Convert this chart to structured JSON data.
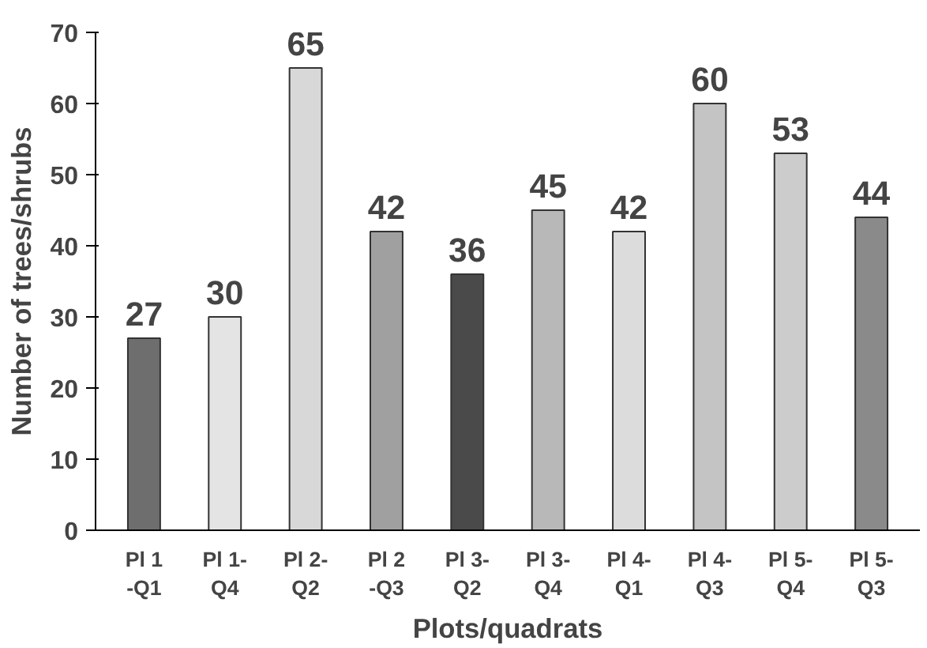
{
  "chart_data": {
    "type": "bar",
    "xlabel": "Plots/quadrats",
    "ylabel": "Number of trees/shrubs",
    "categories": [
      "Pl 1\n-Q1",
      "Pl 1-\nQ4",
      "Pl 2-\nQ2",
      "Pl 2\n-Q3",
      "Pl 3-\nQ2",
      "Pl 3-\nQ4",
      "Pl 4-\nQ1",
      "Pl 4-\nQ3",
      "Pl 5-\nQ4",
      "Pl 5-\nQ3"
    ],
    "values": [
      27,
      30,
      65,
      42,
      36,
      45,
      42,
      60,
      53,
      44
    ],
    "colors": [
      "#6e6e6e",
      "#e4e4e4",
      "#d8d8d8",
      "#a0a0a0",
      "#4a4a4a",
      "#b8b8b8",
      "#dcdcdc",
      "#c4c4c4",
      "#cccccc",
      "#8a8a8a"
    ],
    "ylim": [
      0,
      70
    ],
    "yticks": [
      0,
      10,
      20,
      30,
      40,
      50,
      60,
      70
    ],
    "data_labels": true,
    "grid": false
  }
}
